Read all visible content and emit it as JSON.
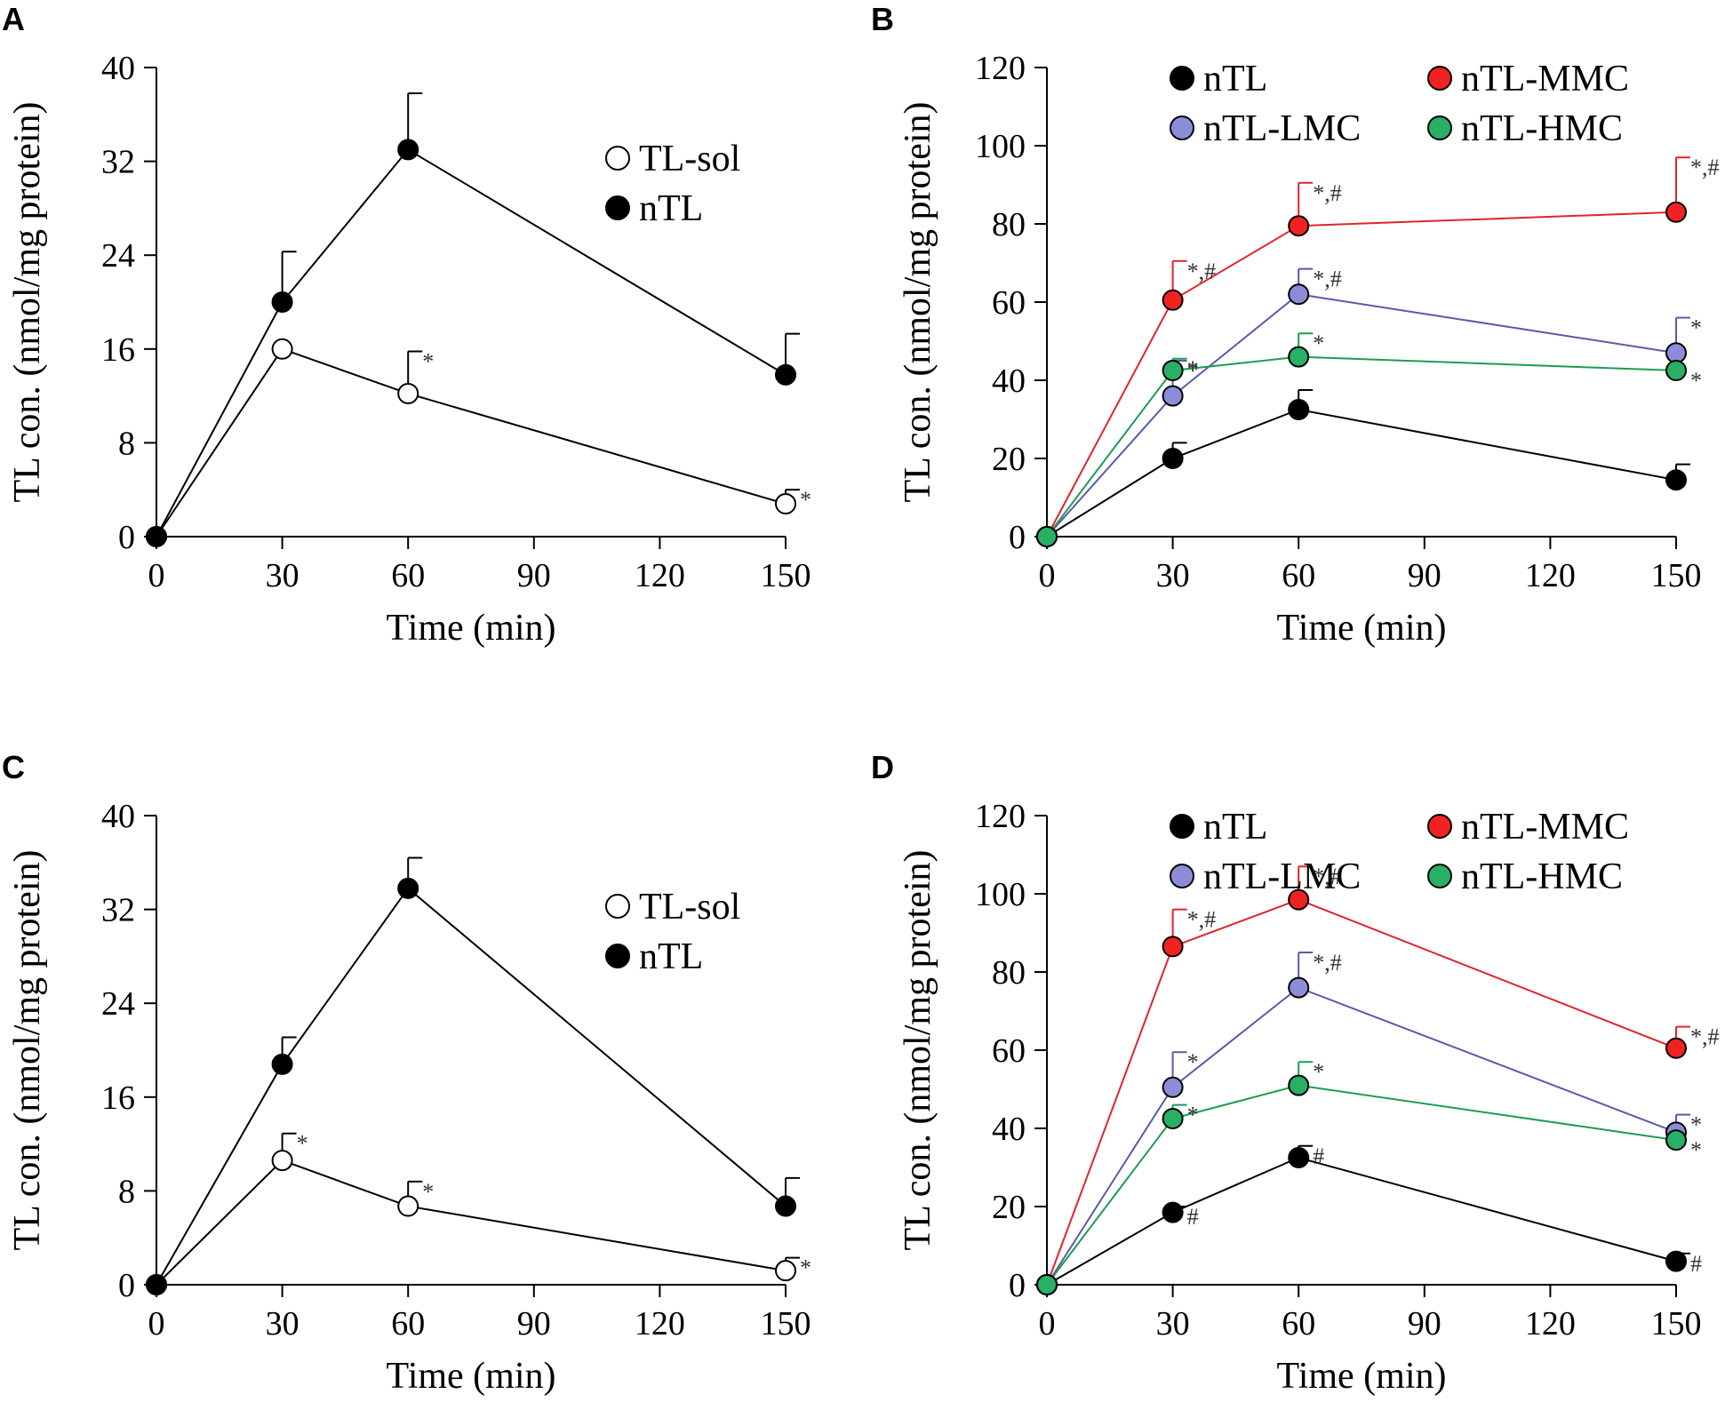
{
  "chart_data": [
    {
      "panel": "A",
      "type": "line",
      "xlabel": "Time (min)",
      "ylabel": "TL con. (nmol/mg protein)",
      "xlim": [
        0,
        150
      ],
      "ylim": [
        0,
        40
      ],
      "xticks": [
        0,
        30,
        60,
        90,
        120,
        150
      ],
      "yticks": [
        0,
        8,
        16,
        24,
        32,
        40
      ],
      "x": [
        0,
        30,
        60,
        150
      ],
      "legend_position": "upper-right",
      "series": [
        {
          "name": "TL-sol",
          "color": "#000000",
          "fill": "#ffffff",
          "values": [
            0,
            16,
            12.2,
            2.8
          ],
          "errors": [
            0,
            0,
            3.6,
            1.2
          ],
          "sig": [
            "",
            "",
            "*",
            "*"
          ]
        },
        {
          "name": "nTL",
          "color": "#000000",
          "fill": "#000000",
          "values": [
            0,
            20,
            33,
            13.8
          ],
          "errors": [
            0,
            4.3,
            4.8,
            3.5
          ],
          "sig": [
            "",
            "",
            "",
            ""
          ]
        }
      ]
    },
    {
      "panel": "B",
      "type": "line",
      "xlabel": "Time (min)",
      "ylabel": "TL con. (nmol/mg protein)",
      "xlim": [
        0,
        150
      ],
      "ylim": [
        0,
        120
      ],
      "xticks": [
        0,
        30,
        60,
        90,
        120,
        150
      ],
      "yticks": [
        0,
        20,
        40,
        60,
        80,
        100,
        120
      ],
      "x": [
        0,
        30,
        60,
        150
      ],
      "legend_position": "top",
      "series": [
        {
          "name": "nTL",
          "color": "#000000",
          "fill": "#000000",
          "values": [
            0,
            20,
            32.5,
            14.5
          ],
          "errors": [
            0,
            4,
            5,
            4
          ],
          "sig": [
            "",
            "",
            "",
            ""
          ]
        },
        {
          "name": "nTL-MMC",
          "color": "#e0242a",
          "fill": "#f02222",
          "values": [
            0,
            60.5,
            79.5,
            83
          ],
          "errors": [
            0,
            10,
            11,
            14
          ],
          "sig": [
            "",
            "*,#",
            "*,#",
            "*,#"
          ]
        },
        {
          "name": "nTL-LMC",
          "color": "#5a5aa8",
          "fill": "#8c8cd8",
          "values": [
            0,
            36,
            62,
            47
          ],
          "errors": [
            0,
            9,
            6.5,
            9
          ],
          "sig": [
            "",
            "*",
            "*,#",
            "*"
          ]
        },
        {
          "name": "nTL-HMC",
          "color": "#1f9b56",
          "fill": "#28b064",
          "values": [
            0,
            42.5,
            46,
            42.5
          ],
          "errors": [
            0,
            3,
            6,
            0
          ],
          "sig": [
            "",
            "*",
            "*",
            "*"
          ]
        }
      ]
    },
    {
      "panel": "C",
      "type": "line",
      "xlabel": "Time (min)",
      "ylabel": "TL con. (nmol/mg protein)",
      "xlim": [
        0,
        150
      ],
      "ylim": [
        0,
        40
      ],
      "xticks": [
        0,
        30,
        60,
        90,
        120,
        150
      ],
      "yticks": [
        0,
        8,
        16,
        24,
        32,
        40
      ],
      "x": [
        0,
        30,
        60,
        150
      ],
      "legend_position": "upper-right",
      "series": [
        {
          "name": "TL-sol",
          "color": "#000000",
          "fill": "#ffffff",
          "values": [
            0,
            10.6,
            6.7,
            1.2
          ],
          "errors": [
            0,
            2.3,
            2.1,
            1.1
          ],
          "sig": [
            "",
            "*",
            "*",
            "*"
          ]
        },
        {
          "name": "nTL",
          "color": "#000000",
          "fill": "#000000",
          "values": [
            0,
            18.8,
            33.8,
            6.7
          ],
          "errors": [
            0,
            2.3,
            2.6,
            2.4
          ],
          "sig": [
            "",
            "",
            "",
            ""
          ]
        }
      ]
    },
    {
      "panel": "D",
      "type": "line",
      "xlabel": "Time (min)",
      "ylabel": "TL con. (nmol/mg protein)",
      "xlim": [
        0,
        150
      ],
      "ylim": [
        0,
        120
      ],
      "xticks": [
        0,
        30,
        60,
        90,
        120,
        150
      ],
      "yticks": [
        0,
        20,
        40,
        60,
        80,
        100,
        120
      ],
      "x": [
        0,
        30,
        60,
        150
      ],
      "legend_position": "top",
      "series": [
        {
          "name": "nTL",
          "color": "#000000",
          "fill": "#000000",
          "values": [
            0,
            18.5,
            32.5,
            6
          ],
          "errors": [
            0,
            1.5,
            3,
            2
          ],
          "sig": [
            "",
            "#",
            "#",
            "#"
          ]
        },
        {
          "name": "nTL-MMC",
          "color": "#e0242a",
          "fill": "#f02222",
          "values": [
            0,
            86.5,
            98.5,
            60.5
          ],
          "errors": [
            0,
            9.5,
            8.5,
            5.5
          ],
          "sig": [
            "",
            "*,#",
            "*,#",
            "*,#"
          ]
        },
        {
          "name": "nTL-LMC",
          "color": "#5a5aa8",
          "fill": "#8c8cd8",
          "values": [
            0,
            50.5,
            76,
            39
          ],
          "errors": [
            0,
            9,
            9,
            4.5
          ],
          "sig": [
            "",
            "*",
            "*,#",
            "*"
          ]
        },
        {
          "name": "nTL-HMC",
          "color": "#1f9b56",
          "fill": "#28b064",
          "values": [
            0,
            42.5,
            51,
            37
          ],
          "errors": [
            0,
            3.5,
            6,
            0
          ],
          "sig": [
            "",
            "*",
            "*",
            "*"
          ]
        }
      ]
    }
  ]
}
